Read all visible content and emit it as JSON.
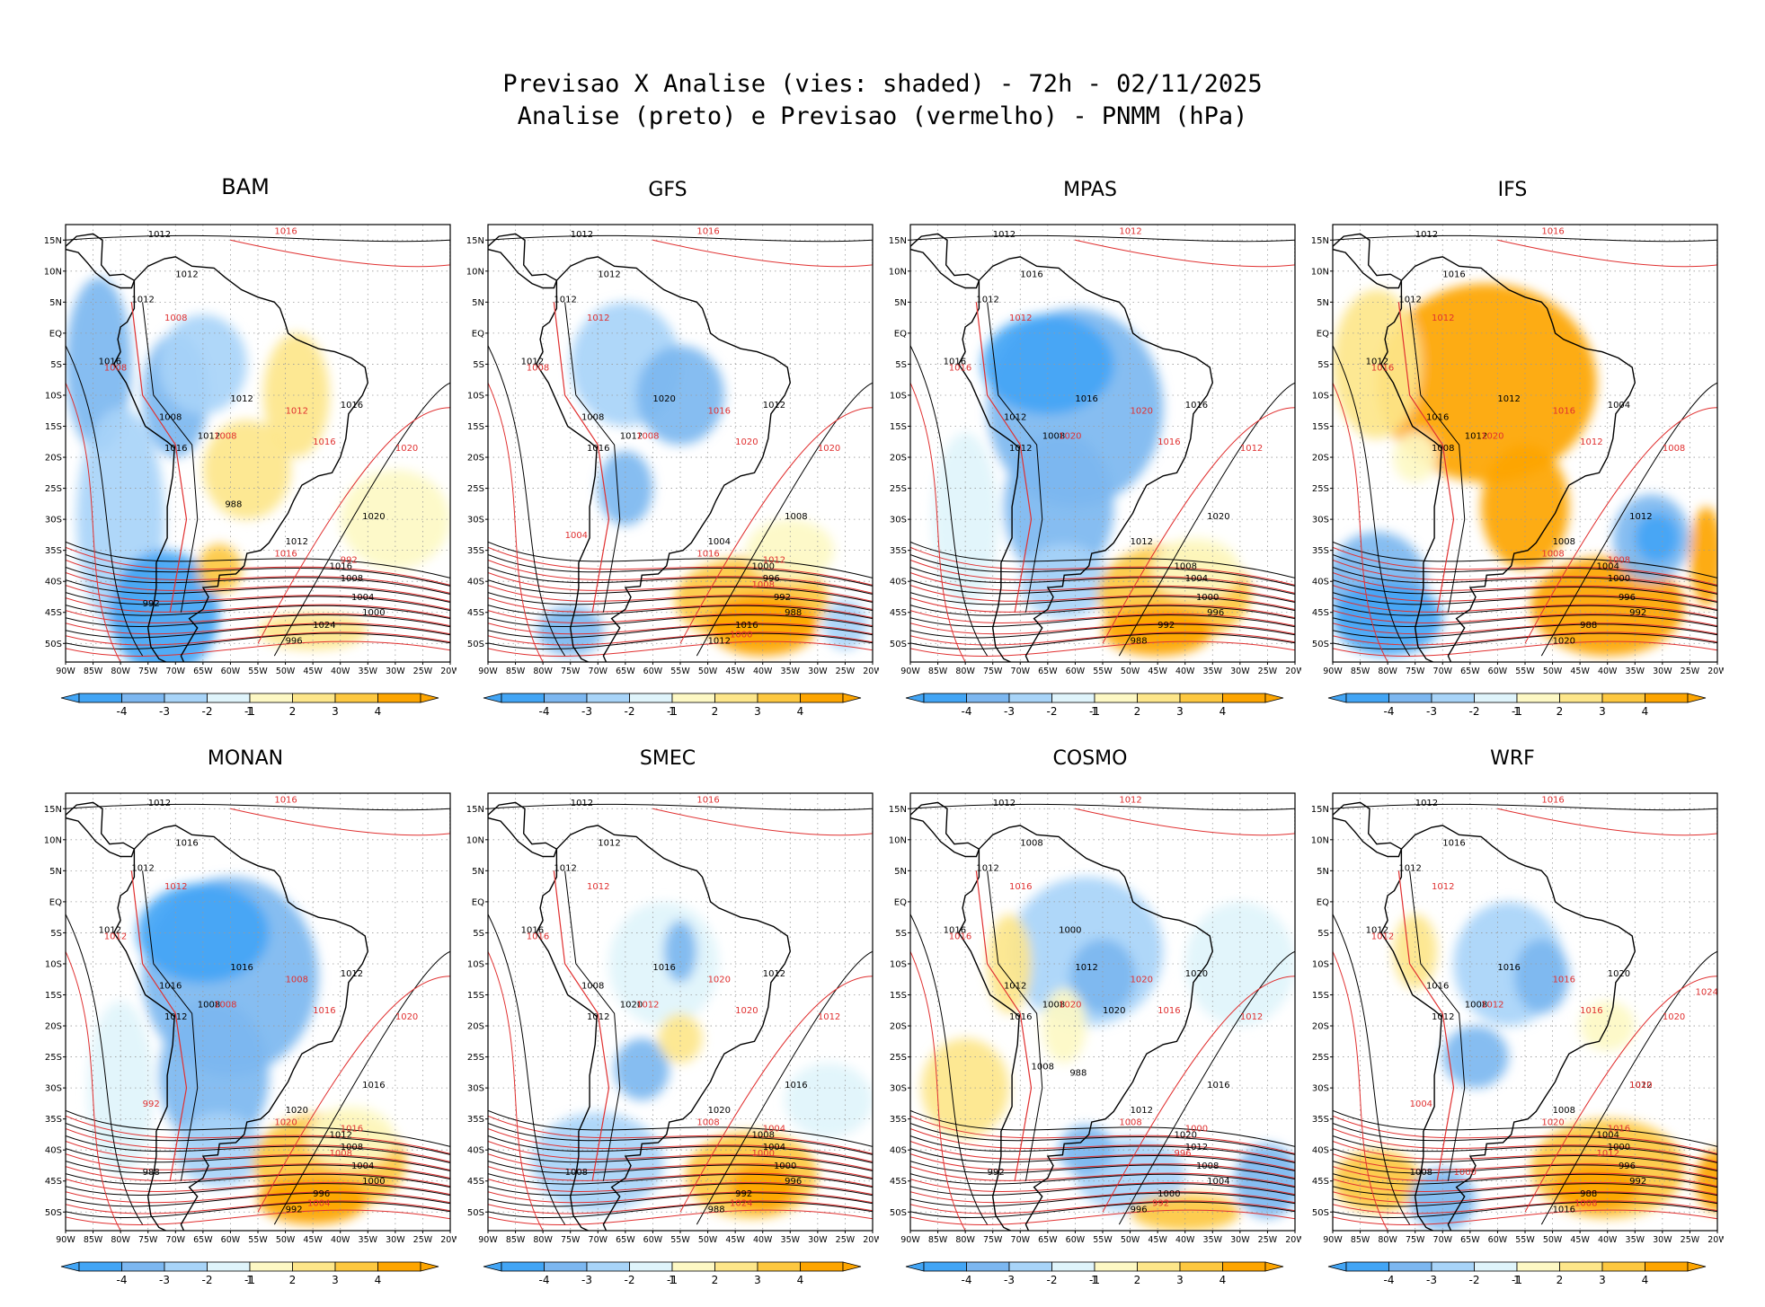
{
  "header": {
    "line1": "Previsao X Analise (vies: shaded) - 72h - 02/11/2025",
    "line2": "Analise (preto) e Previsao (vermelho) - PNMM (hPa)"
  },
  "colors": {
    "neg4": "#42a5f5",
    "neg3": "#7cb7f0",
    "neg2": "#a8d4f8",
    "neg1": "#dff4fb",
    "pos1": "#fdf8c4",
    "pos2": "#fde68a",
    "pos3": "#fdc840",
    "pos4": "#fda500",
    "analysis_line": "#000000",
    "forecast_line": "#e03030"
  },
  "axes": {
    "lat_labels": [
      "15N",
      "10N",
      "5N",
      "EQ",
      "5S",
      "10S",
      "15S",
      "20S",
      "25S",
      "30S",
      "35S",
      "40S",
      "45S",
      "50S"
    ],
    "lon_labels": [
      "90W",
      "85W",
      "80W",
      "75W",
      "70W",
      "65W",
      "60W",
      "55W",
      "50W",
      "45W",
      "40W",
      "35W",
      "30W",
      "25W",
      "20W"
    ]
  },
  "colorbar": {
    "labels": [
      "-4",
      "-3",
      "-2",
      "-1",
      "1",
      "2",
      "3",
      "4"
    ]
  },
  "panels": [
    {
      "name": "BAM",
      "bias": "mixed",
      "black_labels": [
        "1012",
        "1012",
        "1012",
        "1016",
        "1008",
        "1012",
        "1016",
        "1012",
        "1016",
        "1020",
        "1012",
        "1016",
        "1008",
        "1004",
        "1000",
        "1024",
        "996",
        "992",
        "988"
      ],
      "red_labels": [
        "1016",
        "1008",
        "1008",
        "1008",
        "1012",
        "1016",
        "1020",
        "1016",
        "992"
      ]
    },
    {
      "name": "GFS",
      "bias": "positive-south",
      "black_labels": [
        "1012",
        "1012",
        "1012",
        "1012",
        "1008",
        "1012",
        "1016",
        "1020",
        "1012",
        "1008",
        "1004",
        "1000",
        "996",
        "992",
        "988",
        "1016",
        "1012"
      ],
      "red_labels": [
        "1016",
        "1012",
        "1008",
        "1008",
        "1016",
        "1020",
        "1020",
        "1016",
        "1012",
        "1008",
        "1000",
        "1004"
      ]
    },
    {
      "name": "MPAS",
      "bias": "negative-continent",
      "black_labels": [
        "1012",
        "1016",
        "1012",
        "1016",
        "1012",
        "1008",
        "1012",
        "1016",
        "1016",
        "1020",
        "1012",
        "1008",
        "1004",
        "1000",
        "996",
        "992",
        "988"
      ],
      "red_labels": [
        "1012",
        "1012",
        "1016",
        "1020",
        "1020",
        "1016",
        "1012"
      ]
    },
    {
      "name": "IFS",
      "bias": "positive-continent",
      "black_labels": [
        "1012",
        "1016",
        "1012",
        "1012",
        "1016",
        "1012",
        "1008",
        "1012",
        "1004",
        "1012",
        "1008",
        "1004",
        "1000",
        "996",
        "992",
        "988",
        "1020"
      ],
      "red_labels": [
        "1016",
        "1012",
        "1016",
        "1020",
        "1016",
        "1012",
        "1008",
        "1008",
        "1008"
      ]
    },
    {
      "name": "MONAN",
      "bias": "negative-continent",
      "black_labels": [
        "1012",
        "1016",
        "1012",
        "1012",
        "1016",
        "1008",
        "1012",
        "1016",
        "1012",
        "1016",
        "1020",
        "1012",
        "1008",
        "1004",
        "1000",
        "996",
        "992",
        "988"
      ],
      "red_labels": [
        "1016",
        "1012",
        "1012",
        "1008",
        "1008",
        "1016",
        "1020",
        "1020",
        "1016",
        "1008",
        "1004",
        "992"
      ]
    },
    {
      "name": "SMEC",
      "bias": "mixed-south",
      "black_labels": [
        "1012",
        "1012",
        "1012",
        "1016",
        "1008",
        "1020",
        "1012",
        "1016",
        "1012",
        "1016",
        "1020",
        "1008",
        "1004",
        "1000",
        "996",
        "992",
        "988",
        "1008"
      ],
      "red_labels": [
        "1016",
        "1012",
        "1016",
        "1012",
        "1020",
        "1020",
        "1012",
        "1008",
        "1004",
        "1000",
        "1024"
      ]
    },
    {
      "name": "COSMO",
      "bias": "mixed-coast",
      "black_labels": [
        "1012",
        "1008",
        "1012",
        "1016",
        "1012",
        "1008",
        "1016",
        "1012",
        "1020",
        "1016",
        "1012",
        "1020",
        "1012",
        "1008",
        "1004",
        "1000",
        "996",
        "992",
        "988",
        "1000",
        "1020",
        "1008"
      ],
      "red_labels": [
        "1012",
        "1016",
        "1016",
        "1020",
        "1020",
        "1016",
        "1012",
        "1008",
        "1000",
        "996",
        "992"
      ]
    },
    {
      "name": "WRF",
      "bias": "positive-south",
      "black_labels": [
        "1012",
        "1016",
        "1012",
        "1012",
        "1016",
        "1008",
        "1012",
        "1016",
        "1020",
        "1012",
        "1008",
        "1004",
        "1000",
        "996",
        "992",
        "988",
        "1016",
        "1008"
      ],
      "red_labels": [
        "1016",
        "1012",
        "1012",
        "1012",
        "1016",
        "1016",
        "1020",
        "1020",
        "1016",
        "1012",
        "1008",
        "1004",
        "1000",
        "1024",
        "1020"
      ]
    }
  ]
}
